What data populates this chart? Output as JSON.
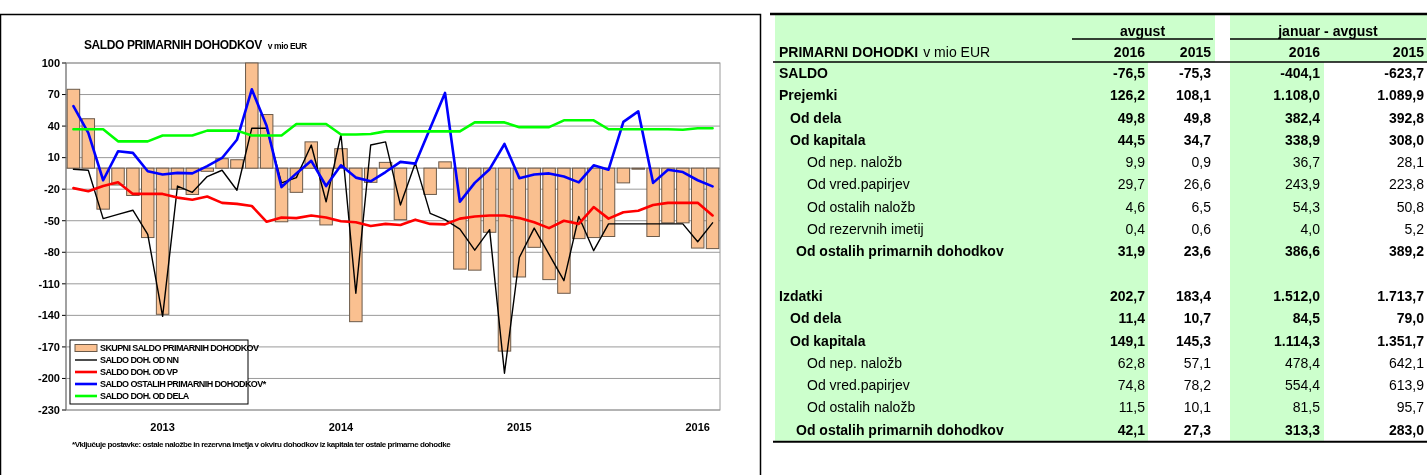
{
  "chart_data": [
    {
      "type": "bar",
      "title": "SALDO PRIMARNIH DOHODKOV",
      "subtitle": "v mio EUR",
      "categories": [
        null,
        null,
        null,
        null,
        null,
        null,
        "2013",
        null,
        null,
        null,
        null,
        null,
        null,
        null,
        null,
        null,
        null,
        null,
        "2014",
        null,
        null,
        null,
        null,
        null,
        null,
        null,
        null,
        null,
        null,
        null,
        "2015",
        null,
        null,
        null,
        null,
        null,
        null,
        null,
        null,
        null,
        null,
        null,
        "2016",
        null
      ],
      "series": [
        {
          "name": "SKUPNI SALDO PRIMARNIH DOHODKOV",
          "color": "#fac090",
          "values": [
            75,
            47,
            -39,
            -16,
            -26,
            -66,
            -139,
            -20,
            -25,
            -3,
            9,
            8,
            100,
            51,
            -51,
            -23,
            25,
            -54,
            18.5,
            -146,
            -13.5,
            5.5,
            -49,
            0,
            -25,
            6,
            -96,
            -97,
            -61,
            -174,
            -103.5,
            -75.3,
            -106,
            -119,
            -67,
            -66,
            -65,
            -14,
            -1,
            -65,
            -52,
            -52,
            -76,
            -76.5
          ]
        },
        {
          "name": "SALDO DOH. OD NN",
          "type": "line",
          "color": "#000000",
          "values": [
            -1,
            -2,
            -48,
            -44,
            -40,
            -63,
            -141,
            -17,
            -23,
            -8,
            -2,
            -21,
            38,
            38,
            -14,
            -9,
            22,
            -32,
            32,
            -119,
            22,
            25,
            -35,
            5,
            -43,
            -49,
            -58,
            -78,
            -58.5,
            -195,
            -85,
            -57,
            -82,
            -107,
            -46,
            -78.5,
            -53,
            -53,
            -53,
            -53,
            -53,
            -53,
            -70,
            -52
          ]
        },
        {
          "name": "SALDO DOH. OD VP",
          "type": "line",
          "color": "#ff0000",
          "values": [
            -19,
            -22,
            -17,
            -13.5,
            -24.5,
            -24.5,
            -24.5,
            -28,
            -30,
            -27,
            -33,
            -34,
            -36,
            -51,
            -47,
            -47.5,
            -45,
            -47,
            -50.5,
            -51.5,
            -55,
            -53,
            -54,
            -49,
            -53,
            -53.5,
            -48,
            -46,
            -45,
            -45,
            -47.5,
            -51.5,
            -57,
            -50,
            -53,
            -37,
            -48,
            -42,
            -40.5,
            -35,
            -33,
            -33,
            -33,
            -45
          ]
        },
        {
          "name": "SALDO OSTALIH PRIMARNIH DOHODKOV*",
          "type": "line",
          "color": "#0000ff",
          "values": [
            59,
            33.5,
            -11.5,
            16,
            14.5,
            -3,
            -6,
            -4.5,
            -5,
            2,
            9.7,
            27,
            75,
            40,
            -18,
            -5,
            7,
            -17,
            2.7,
            -9,
            -12.5,
            -3.7,
            6,
            4.3,
            38,
            71.5,
            -32,
            -14,
            -1,
            23,
            -9.5,
            -6,
            -5,
            -8,
            -13.5,
            2.7,
            -1.5,
            44,
            54,
            -14,
            -1.5,
            -3.7,
            -11.5,
            -17.3
          ]
        },
        {
          "name": "SALDO DOH. OD DELA",
          "type": "line",
          "color": "#00ff00",
          "values": [
            37,
            37,
            37,
            25.5,
            25.5,
            25.5,
            31,
            31,
            31,
            35.7,
            35.7,
            35.7,
            31,
            31,
            31,
            42,
            42,
            42,
            32,
            32,
            32.5,
            35,
            35,
            35,
            35,
            35,
            35,
            43.5,
            43.5,
            43.5,
            39,
            39,
            39,
            45.5,
            45.5,
            45.5,
            37,
            37,
            37,
            37,
            37,
            36.5,
            38,
            38
          ]
        }
      ],
      "ylim": [
        -230,
        100
      ],
      "yticks": [
        -230,
        -200,
        -170,
        -140,
        -110,
        -80,
        -50,
        -20,
        10,
        40,
        70,
        100
      ],
      "grid": "y",
      "legend": "bottom left",
      "annotations": [
        "*Vključuje postavke: ostale naložbe in rezervna imetja v okviru dohodkov iz kapitala ter ostale primarne dohodke"
      ]
    },
    {
      "type": "other",
      "title": "PRIMARNI DOHODKI",
      "subtitle": "v mio EUR",
      "annotations": [
        "avgust",
        "januar - avgust"
      ],
      "categories": [
        "SALDO",
        "Prejemki",
        "Od dela",
        "Od kapitala",
        "Od nep. naložb",
        "Od vred.papirjev",
        "Od ostalih naložb",
        "Od rezervnih imetij",
        "Od ostalih primarnih dohodkov",
        null,
        "Izdatki",
        "Od dela",
        "Od kapitala",
        "Od nep. naložb",
        "Od vred.papirjev",
        "Od ostalih naložb",
        "Od ostalih primarnih dohodkov"
      ],
      "series": [
        {
          "name": "2016",
          "values": [
            -76.5,
            126.2,
            49.8,
            44.5,
            9.9,
            29.7,
            4.6,
            0.4,
            31.9,
            null,
            202.7,
            11.4,
            149.1,
            62.8,
            74.8,
            11.5,
            42.1
          ],
          "value_labels": [
            "-76,5",
            "126,2",
            "49,8",
            "44,5",
            "9,9",
            "29,7",
            "4,6",
            "0,4",
            "31,9",
            null,
            "202,7",
            "11,4",
            "149,1",
            "62,8",
            "74,8",
            "11,5",
            "42,1"
          ]
        },
        {
          "name": "2015",
          "values": [
            -75.3,
            108.1,
            49.8,
            34.7,
            0.9,
            26.6,
            6.5,
            0.6,
            23.6,
            null,
            183.4,
            10.7,
            145.3,
            57.1,
            78.2,
            10.1,
            27.3
          ],
          "value_labels": [
            "-75,3",
            "108,1",
            "49,8",
            "34,7",
            "0,9",
            "26,6",
            "6,5",
            "0,6",
            "23,6",
            null,
            "183,4",
            "10,7",
            "145,3",
            "57,1",
            "78,2",
            "10,1",
            "27,3"
          ]
        },
        {
          "name": "2016",
          "values": [
            -404.1,
            1108.0,
            382.4,
            338.9,
            36.7,
            243.9,
            54.3,
            4.0,
            386.6,
            null,
            1512.0,
            84.5,
            1114.3,
            478.4,
            554.4,
            81.5,
            313.3
          ],
          "value_labels": [
            "-404,1",
            "1.108,0",
            "382,4",
            "338,9",
            "36,7",
            "243,9",
            "54,3",
            "4,0",
            "386,6",
            null,
            "1.512,0",
            "84,5",
            "1.114,3",
            "478,4",
            "554,4",
            "81,5",
            "313,3"
          ]
        },
        {
          "name": "2015",
          "values": [
            -623.7,
            1089.9,
            392.8,
            308.0,
            28.1,
            223.8,
            50.8,
            5.2,
            389.2,
            null,
            1713.7,
            79.0,
            1351.7,
            642.1,
            613.9,
            95.7,
            283.0
          ],
          "value_labels": [
            "-623,7",
            "1.089,9",
            "392,8",
            "308,0",
            "28,1",
            "223,8",
            "50,8",
            "5,2",
            "389,2",
            null,
            "1.713,7",
            "79,0",
            "1.351,7",
            "642,1",
            "613,9",
            "95,7",
            "283,0"
          ]
        }
      ]
    }
  ]
}
